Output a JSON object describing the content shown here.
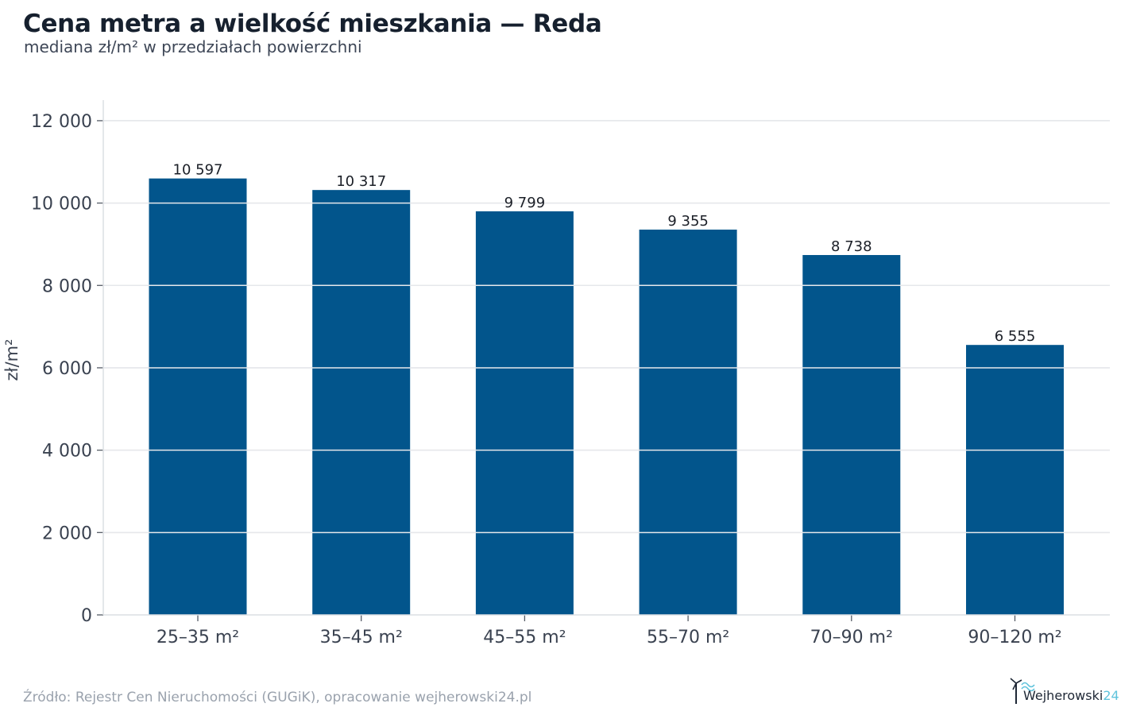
{
  "header": {
    "title": "Cena metra a wielkość mieszkania — Reda",
    "subtitle": "mediana zł/m² w przedziałach powierzchni"
  },
  "chart_data": {
    "type": "bar",
    "categories": [
      "25–35 m²",
      "35–45 m²",
      "45–55 m²",
      "55–70 m²",
      "70–90 m²",
      "90–120 m²"
    ],
    "values": [
      10597,
      10317,
      9799,
      9355,
      8738,
      6555
    ],
    "value_labels": [
      "10 597",
      "10 317",
      "9 799",
      "9 355",
      "8 738",
      "6 555"
    ],
    "ylabel": "zł/m²",
    "ylim": [
      0,
      12500
    ],
    "yticks": [
      0,
      2000,
      4000,
      6000,
      8000,
      10000,
      12000
    ],
    "ytick_labels": [
      "0",
      "2 000",
      "4 000",
      "6 000",
      "8 000",
      "10 000",
      "12 000"
    ],
    "grid": true,
    "bar_color": "#02558c",
    "grid_color": "#e6e8eb"
  },
  "footer": {
    "source": "Źródło: Rejestr Cen Nieruchomości (GUGiK), opracowanie wejherowski24.pl",
    "logo_main": "Wejherowski",
    "logo_accent": "24"
  }
}
